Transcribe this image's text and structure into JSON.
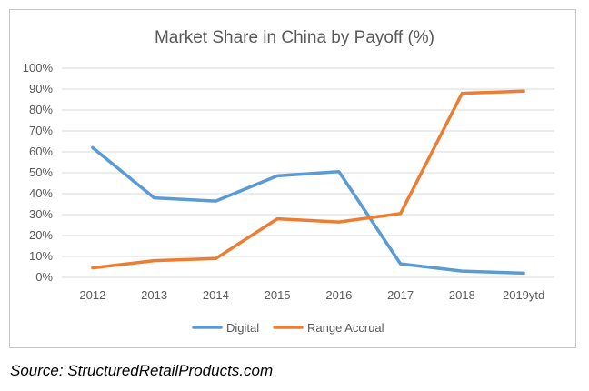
{
  "chart_data": {
    "type": "line",
    "title": "Market Share in China by Payoff (%)",
    "categories": [
      "2012",
      "2013",
      "2014",
      "2015",
      "2016",
      "2017",
      "2018",
      "2019ytd"
    ],
    "y_ticks": [
      "0%",
      "10%",
      "20%",
      "30%",
      "40%",
      "50%",
      "60%",
      "70%",
      "80%",
      "90%",
      "100%"
    ],
    "ylim": [
      0,
      100
    ],
    "grid": true,
    "legend_position": "bottom",
    "series": [
      {
        "name": "Digital",
        "color": "#5b9bd5",
        "values": [
          62,
          38,
          36.5,
          48.5,
          50.5,
          6.5,
          3,
          2
        ]
      },
      {
        "name": "Range Accrual",
        "color": "#ed7d31",
        "values": [
          4.5,
          8,
          9,
          28,
          26.5,
          30.5,
          88,
          89
        ]
      }
    ]
  },
  "source_text": "Source: StructuredRetailProducts.com"
}
